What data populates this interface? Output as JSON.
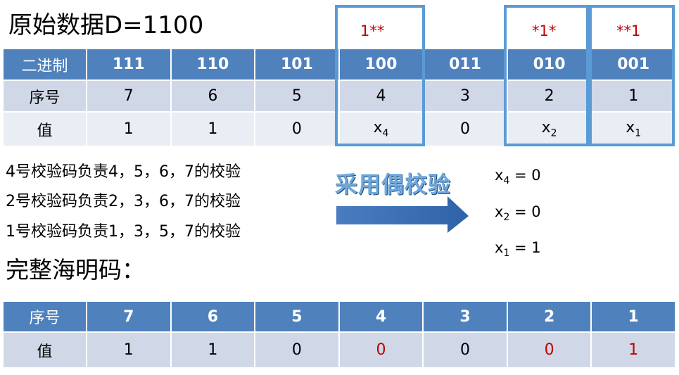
{
  "title": "原始数据D=1100",
  "highlight_labels": [
    "1**",
    "*1*",
    "**1"
  ],
  "table1": {
    "header": [
      "二进制",
      "111",
      "110",
      "101",
      "100",
      "011",
      "010",
      "001"
    ],
    "row_seq": [
      "序号",
      "7",
      "6",
      "5",
      "4",
      "3",
      "2",
      "1"
    ],
    "row_val": [
      "值",
      "1",
      "1",
      "0",
      "x",
      "0",
      "x",
      "x"
    ],
    "subscripts": {
      "c4": "4",
      "c6": "2",
      "c7": "1"
    }
  },
  "responsibilities": [
    "4号校验码负责4，5，6，7的校验",
    "2号校验码负责2，3，6，7的校验",
    "1号校验码负责1，3，5，7的校验"
  ],
  "even_parity_label": "采用偶校验",
  "equations": [
    {
      "var": "x",
      "sub": "4",
      "rest": " = 0"
    },
    {
      "var": "x",
      "sub": "2",
      "rest": " = 0"
    },
    {
      "var": "x",
      "sub": "1",
      "rest": " = 1"
    }
  ],
  "hamming_title": "完整海明码：",
  "table2": {
    "header": [
      "序号",
      "7",
      "6",
      "5",
      "4",
      "3",
      "2",
      "1"
    ],
    "row_val": [
      "值",
      "1",
      "1",
      "0",
      "0",
      "0",
      "0",
      "1"
    ],
    "red_cells": [
      4,
      6,
      7
    ]
  },
  "colors": {
    "header_bg": "#4f81bd",
    "row1_bg": "#d0d8e8",
    "row2_bg": "#e9edf4",
    "highlight_border": "#5b9bd5",
    "accent_red": "#c00000"
  }
}
